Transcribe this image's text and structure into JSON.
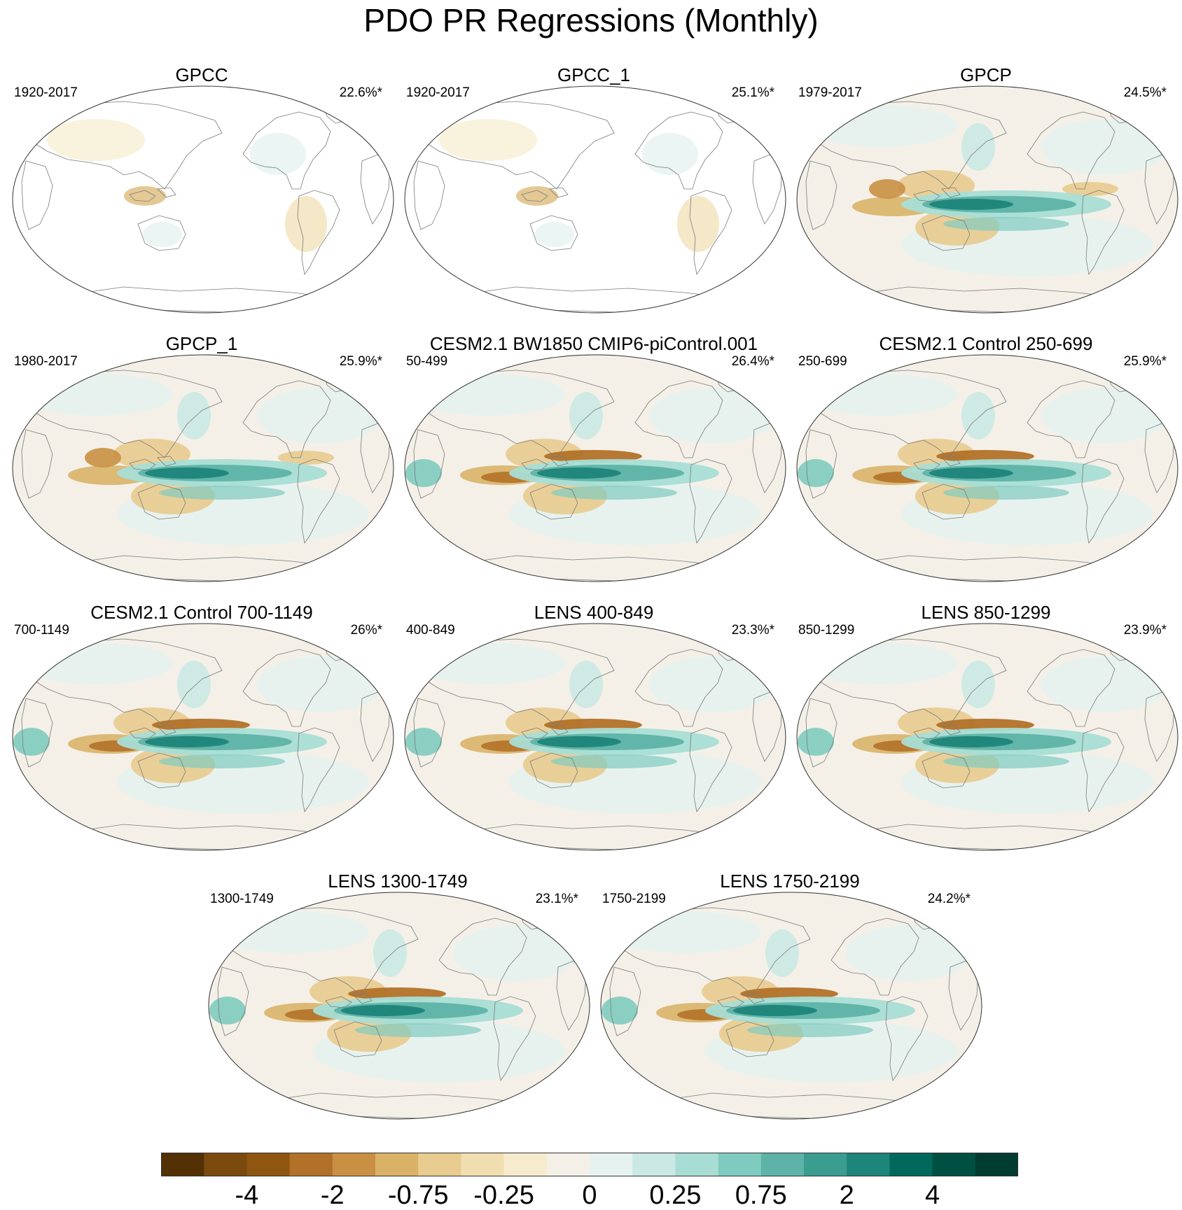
{
  "title": "PDO PR Regressions (Monthly)",
  "panels": [
    {
      "name": "GPCC",
      "years": "1920-2017",
      "pct": "22.6%*",
      "coverage": "land"
    },
    {
      "name": "GPCC_1",
      "years": "1920-2017",
      "pct": "25.1%*",
      "coverage": "land"
    },
    {
      "name": "GPCP",
      "years": "1979-2017",
      "pct": "24.5%*",
      "coverage": "global"
    },
    {
      "name": "GPCP_1",
      "years": "1980-2017",
      "pct": "25.9%*",
      "coverage": "global"
    },
    {
      "name": "CESM2.1 BW1850 CMIP6-piControl.001",
      "years": "50-499",
      "pct": "26.4%*",
      "coverage": "global"
    },
    {
      "name": "CESM2.1 Control 250-699",
      "years": "250-699",
      "pct": "25.9%*",
      "coverage": "global"
    },
    {
      "name": "CESM2.1 Control 700-1149",
      "years": "700-1149",
      "pct": "26%*",
      "coverage": "global"
    },
    {
      "name": "LENS 400-849",
      "years": "400-849",
      "pct": "23.3%*",
      "coverage": "global"
    },
    {
      "name": "LENS 850-1299",
      "years": "850-1299",
      "pct": "23.9%*",
      "coverage": "global"
    },
    {
      "name": "LENS 1300-1749",
      "years": "1300-1749",
      "pct": "23.1%*",
      "coverage": "global"
    },
    {
      "name": "LENS 1750-2199",
      "years": "1750-2199",
      "pct": "24.2%*",
      "coverage": "global"
    }
  ],
  "colorbar": {
    "colors": [
      "#543005",
      "#7a4a0e",
      "#8f5611",
      "#b27128",
      "#c99044",
      "#d9b268",
      "#e8cb8e",
      "#f1deb0",
      "#f6eccd",
      "#f4f0e8",
      "#e6f2f0",
      "#cbe9e4",
      "#a8ddd5",
      "#80cbbf",
      "#5db3a7",
      "#3a9d90",
      "#1d8579",
      "#00695c",
      "#004f43",
      "#003c30"
    ],
    "labels": [
      "-4",
      "-2",
      "-0.75",
      "-0.25",
      "0",
      "0.25",
      "0.75",
      "2",
      "4"
    ]
  },
  "chart_data": {
    "type": "map",
    "title": "PDO PR Regressions (Monthly)",
    "projection": "Winkel tripel / Robinson-style global, centered on Pacific",
    "contour_levels": [
      -6,
      -4,
      -3,
      -2,
      -1,
      -0.75,
      -0.5,
      -0.25,
      -0.1,
      0,
      0.1,
      0.25,
      0.5,
      0.75,
      1,
      2,
      3,
      4,
      6
    ],
    "colorbar_tick_labels": [
      -4,
      -2,
      -0.75,
      -0.25,
      0,
      0.25,
      0.75,
      2,
      4
    ],
    "panels": [
      {
        "title": "GPCC",
        "period": "1920-2017",
        "variance_explained": "22.6%*"
      },
      {
        "title": "GPCC_1",
        "period": "1920-2017",
        "variance_explained": "25.1%*"
      },
      {
        "title": "GPCP",
        "period": "1979-2017",
        "variance_explained": "24.5%*"
      },
      {
        "title": "GPCP_1",
        "period": "1980-2017",
        "variance_explained": "25.9%*"
      },
      {
        "title": "CESM2.1 BW1850 CMIP6-piControl.001",
        "period": "50-499",
        "variance_explained": "26.4%*"
      },
      {
        "title": "CESM2.1 Control 250-699",
        "period": "250-699",
        "variance_explained": "25.9%*"
      },
      {
        "title": "CESM2.1 Control 700-1149",
        "period": "700-1149",
        "variance_explained": "26%*"
      },
      {
        "title": "LENS 400-849",
        "period": "400-849",
        "variance_explained": "23.3%*"
      },
      {
        "title": "LENS 850-1299",
        "period": "850-1299",
        "variance_explained": "23.9%*"
      },
      {
        "title": "LENS 1300-1749",
        "period": "1300-1749",
        "variance_explained": "23.1%*"
      },
      {
        "title": "LENS 1750-2199",
        "period": "1750-2199",
        "variance_explained": "24.2%*"
      }
    ]
  }
}
